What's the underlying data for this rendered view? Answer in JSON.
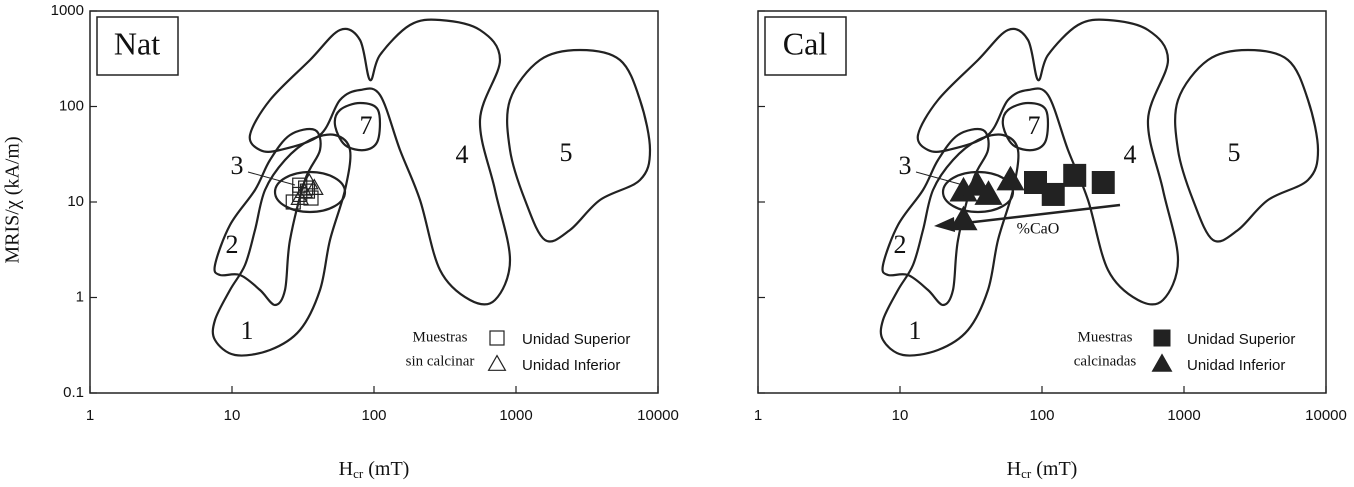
{
  "chart_data": [
    {
      "type": "scatter",
      "title": "Nat",
      "y_label": "MRIS/χ (kA/m)",
      "x_label": [
        "H",
        "cr",
        " (mT)"
      ],
      "xscale": "log",
      "yscale": "log",
      "xlim": [
        1,
        10000
      ],
      "ylim": [
        0.1,
        1000
      ],
      "xticks": [
        1,
        10,
        100,
        1000,
        10000
      ],
      "yticks": [
        0.1,
        1,
        10,
        100,
        1000
      ],
      "legend_title": [
        "Muestras",
        "sin calcinar"
      ],
      "region_labels": [
        "1",
        "2",
        "3",
        "4",
        "5",
        "7"
      ],
      "series": [
        {
          "name": "Unidad Superior",
          "marker": "square",
          "filled": false,
          "color": "#222222",
          "x": [
            27,
            30,
            33,
            36,
            30,
            34
          ],
          "values": [
            10,
            12,
            14,
            11,
            15,
            13
          ]
        },
        {
          "name": "Unidad Inferior",
          "marker": "triangle",
          "filled": false,
          "color": "#222222",
          "x": [
            32,
            35,
            38,
            30
          ],
          "values": [
            13,
            16,
            14,
            11
          ]
        }
      ]
    },
    {
      "type": "scatter",
      "title": "Cal",
      "x_label": [
        "H",
        "cr",
        " (mT)"
      ],
      "xscale": "log",
      "yscale": "log",
      "xlim": [
        1,
        10000
      ],
      "ylim": [
        0.1,
        1000
      ],
      "xticks": [
        1,
        10,
        100,
        1000,
        10000
      ],
      "yticks": [
        0.1,
        1,
        10,
        100,
        1000
      ],
      "legend_title": [
        "Muestras",
        "calcinadas"
      ],
      "region_labels": [
        "1",
        "2",
        "3",
        "4",
        "5",
        "7"
      ],
      "arrow_label": "%CaO",
      "series": [
        {
          "name": "Unidad Superior",
          "marker": "square",
          "filled": true,
          "color": "#222222",
          "x": [
            90,
            120,
            170,
            270
          ],
          "values": [
            16,
            12,
            19,
            16
          ]
        },
        {
          "name": "Unidad Inferior",
          "marker": "triangle",
          "filled": true,
          "color": "#222222",
          "x": [
            28,
            35,
            42,
            60,
            28
          ],
          "values": [
            13,
            15,
            12,
            17,
            6.5
          ]
        }
      ]
    }
  ]
}
